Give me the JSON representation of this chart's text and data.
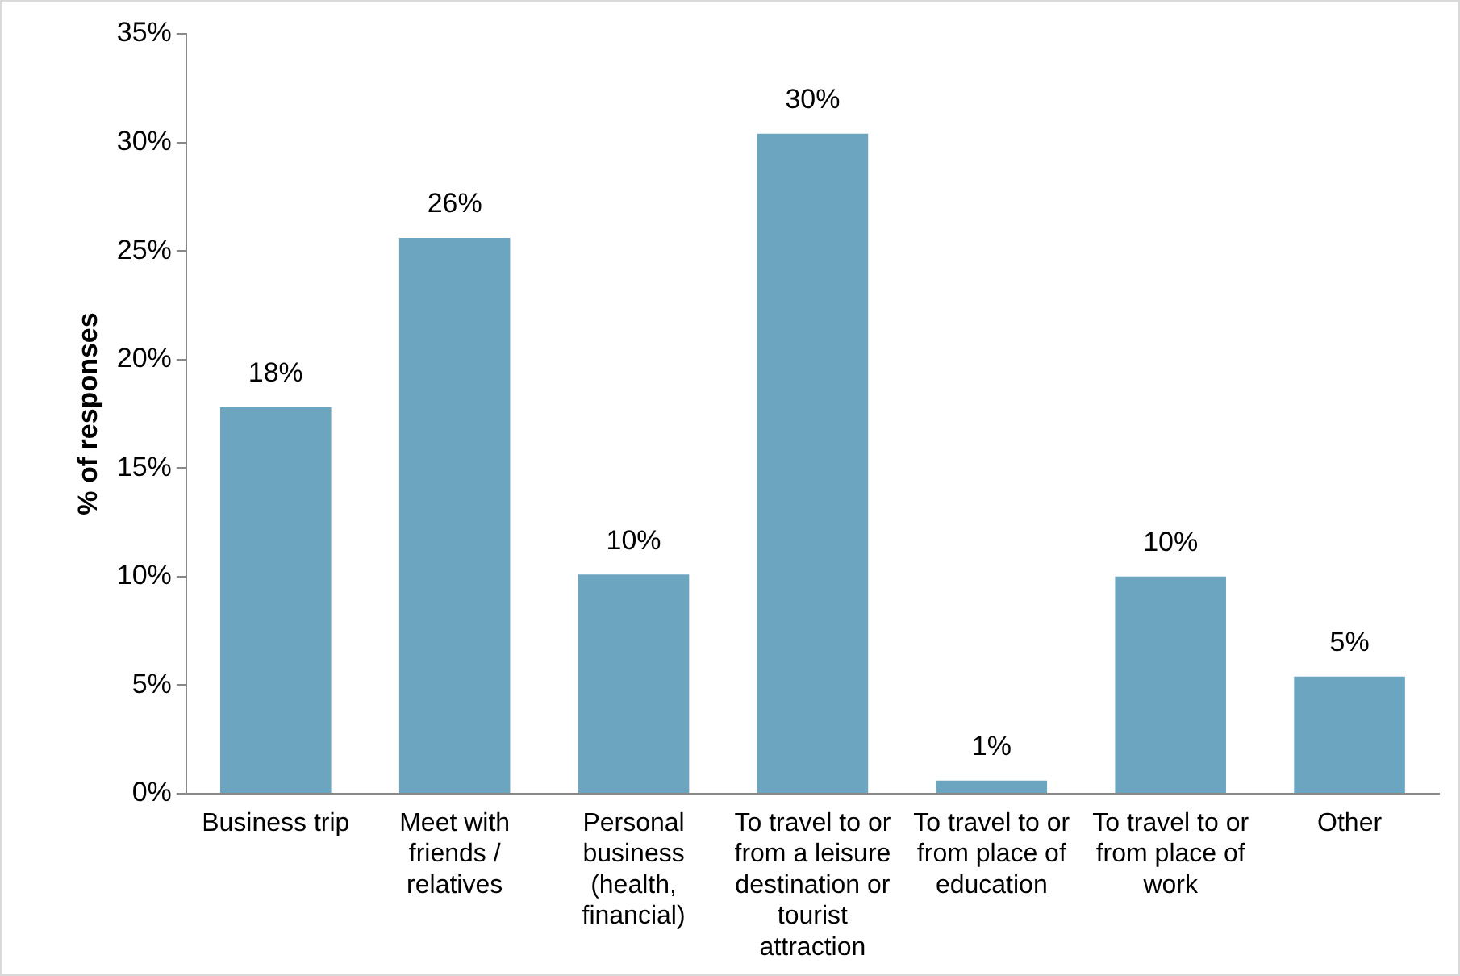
{
  "chart_data": {
    "type": "bar",
    "ylabel": "% of responses",
    "categories": [
      "Business trip",
      "Meet with friends / relatives",
      "Personal business (health, financial)",
      "To travel to or from a leisure destination or tourist attraction",
      "To travel to or from place of education",
      "To travel to or from place of work",
      "Other"
    ],
    "values": [
      17.8,
      25.6,
      10.1,
      30.4,
      0.6,
      10.0,
      5.4
    ],
    "value_labels": [
      "18%",
      "26%",
      "10%",
      "30%",
      "1%",
      "10%",
      "5%"
    ],
    "color": "#6ba5c0",
    "ylim": [
      0,
      35
    ],
    "yticks": [
      {
        "value": 0,
        "label": "0%"
      },
      {
        "value": 5,
        "label": "5%"
      },
      {
        "value": 10,
        "label": "10%"
      },
      {
        "value": 15,
        "label": "15%"
      },
      {
        "value": 20,
        "label": "20%"
      },
      {
        "value": 25,
        "label": "25%"
      },
      {
        "value": 30,
        "label": "30%"
      },
      {
        "value": 35,
        "label": "35%"
      }
    ],
    "grid": false,
    "legend": false
  }
}
